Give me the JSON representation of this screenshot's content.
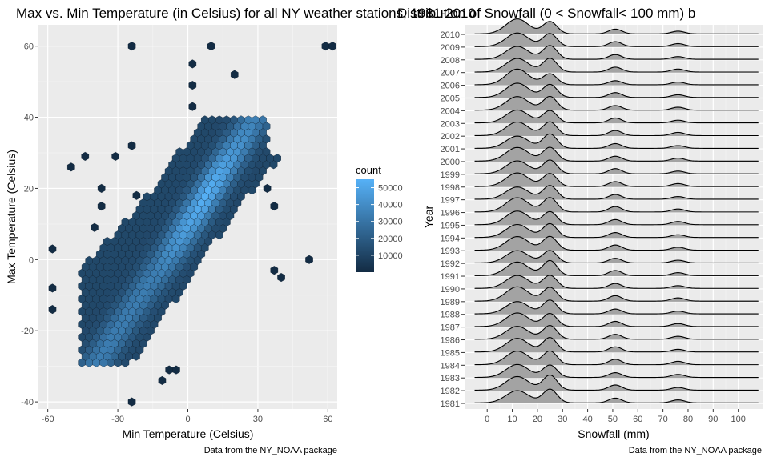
{
  "chart_data": [
    {
      "type": "hexbin",
      "title": "Max vs. Min Temperature (in Celsius) for all NY weather stations, 1981-2010",
      "xlabel": "Min Temperature (Celsius)",
      "ylabel": "Max Temperature (Celsius)",
      "caption": "Data from the NY_NOAA package",
      "xlim": [
        -64,
        64
      ],
      "ylim": [
        -42,
        66
      ],
      "x_ticks": [
        -60,
        -30,
        0,
        30,
        60
      ],
      "y_ticks": [
        -40,
        -20,
        0,
        20,
        40,
        60
      ],
      "grid": true,
      "hex_size_x": 3.1,
      "legend": {
        "title": "count",
        "position": "right",
        "ticks": [
          10000,
          20000,
          30000,
          40000,
          50000
        ],
        "tick_labels": [
          "10000",
          "20000",
          "30000",
          "40000",
          "50000"
        ],
        "range": [
          1,
          55000
        ],
        "color_low": "#132b43",
        "color_high": "#56b1f7"
      },
      "cells": [
        {
          "x": -24,
          "y": 60,
          "count": 1
        },
        {
          "x": 10,
          "y": 60,
          "count": 1
        },
        {
          "x": 59,
          "y": 60,
          "count": 1
        },
        {
          "x": 62,
          "y": 60,
          "count": 1
        },
        {
          "x": 2,
          "y": 55,
          "count": 1
        },
        {
          "x": 20,
          "y": 52,
          "count": 1
        },
        {
          "x": 2,
          "y": 49,
          "count": 1
        },
        {
          "x": 2,
          "y": 43,
          "count": 1
        },
        {
          "x": -58,
          "y": 3,
          "count": 1
        },
        {
          "x": -58,
          "y": -8,
          "count": 1
        },
        {
          "x": -58,
          "y": -14,
          "count": 1
        },
        {
          "x": -50,
          "y": 26,
          "count": 1
        },
        {
          "x": -44,
          "y": 29,
          "count": 1
        },
        {
          "x": -31,
          "y": 29,
          "count": 1
        },
        {
          "x": -37,
          "y": 20,
          "count": 1
        },
        {
          "x": -37,
          "y": 15,
          "count": 1
        },
        {
          "x": -40,
          "y": 9,
          "count": 1
        },
        {
          "x": -24,
          "y": 32,
          "count": 1
        },
        {
          "x": -22,
          "y": 18,
          "count": 1
        },
        {
          "x": 52,
          "y": 0,
          "count": 1
        },
        {
          "x": 37,
          "y": -3,
          "count": 1
        },
        {
          "x": 40,
          "y": -5,
          "count": 1
        },
        {
          "x": -24,
          "y": -40,
          "count": 1
        },
        {
          "x": -11,
          "y": -34,
          "count": 1
        },
        {
          "x": -8,
          "y": -31,
          "count": 1
        },
        {
          "x": -5,
          "y": -31,
          "count": 1
        },
        {
          "x": 37,
          "y": 15,
          "count": 1
        },
        {
          "x": 34,
          "y": 20,
          "count": 1
        }
      ]
    },
    {
      "type": "ridgeline",
      "title": "Distribution of Snowfall (0 < Snowfall< 100 mm) b",
      "xlabel": "Snowfall (mm)",
      "ylabel": "Year",
      "caption": "Data from the NY_NOAA package",
      "xlim": [
        -9,
        110
      ],
      "x_ticks": [
        0,
        10,
        20,
        30,
        40,
        50,
        60,
        70,
        80,
        90,
        100
      ],
      "categories": [
        "1981",
        "1982",
        "1983",
        "1984",
        "1985",
        "1986",
        "1987",
        "1988",
        "1989",
        "1990",
        "1991",
        "1992",
        "1993",
        "1994",
        "1995",
        "1996",
        "1997",
        "1998",
        "1999",
        "2000",
        "2001",
        "2002",
        "2003",
        "2004",
        "2005",
        "2006",
        "2007",
        "2008",
        "2009",
        "2010"
      ],
      "fill_color": "#a3a3a3",
      "line_color": "#000000",
      "peaks": [
        {
          "mu": 12,
          "sigma": 4.5
        },
        {
          "mu": 25,
          "sigma": 2.8
        },
        {
          "mu": 51,
          "sigma": 2.6
        },
        {
          "mu": 76,
          "sigma": 2.6
        }
      ],
      "series": [
        {
          "year": "1981",
          "peak_weights": [
            0.9,
            1.0,
            0.35,
            0.22
          ]
        },
        {
          "year": "1982",
          "peak_weights": [
            1.0,
            1.1,
            0.38,
            0.2
          ]
        },
        {
          "year": "1983",
          "peak_weights": [
            0.95,
            0.9,
            0.35,
            0.22
          ]
        },
        {
          "year": "1984",
          "peak_weights": [
            1.0,
            1.0,
            0.4,
            0.25
          ]
        },
        {
          "year": "1985",
          "peak_weights": [
            1.0,
            1.05,
            0.38,
            0.2
          ]
        },
        {
          "year": "1986",
          "peak_weights": [
            0.95,
            1.0,
            0.36,
            0.22
          ]
        },
        {
          "year": "1987",
          "peak_weights": [
            1.0,
            0.95,
            0.38,
            0.22
          ]
        },
        {
          "year": "1988",
          "peak_weights": [
            0.9,
            1.0,
            0.35,
            0.2
          ]
        },
        {
          "year": "1989",
          "peak_weights": [
            1.05,
            1.0,
            0.4,
            0.24
          ]
        },
        {
          "year": "1990",
          "peak_weights": [
            0.95,
            0.95,
            0.36,
            0.2
          ]
        },
        {
          "year": "1991",
          "peak_weights": [
            1.0,
            1.1,
            0.38,
            0.22
          ]
        },
        {
          "year": "1992",
          "peak_weights": [
            0.9,
            0.9,
            0.34,
            0.2
          ]
        },
        {
          "year": "1993",
          "peak_weights": [
            1.0,
            1.0,
            0.38,
            0.22
          ]
        },
        {
          "year": "1994",
          "peak_weights": [
            0.95,
            1.0,
            0.36,
            0.2
          ]
        },
        {
          "year": "1995",
          "peak_weights": [
            1.0,
            0.95,
            0.38,
            0.24
          ]
        },
        {
          "year": "1996",
          "peak_weights": [
            1.05,
            1.05,
            0.4,
            0.22
          ]
        },
        {
          "year": "1997",
          "peak_weights": [
            0.9,
            1.0,
            0.35,
            0.2
          ]
        },
        {
          "year": "1998",
          "peak_weights": [
            1.0,
            0.95,
            0.36,
            0.22
          ]
        },
        {
          "year": "1999",
          "peak_weights": [
            0.95,
            1.0,
            0.38,
            0.2
          ]
        },
        {
          "year": "2000",
          "peak_weights": [
            1.0,
            1.0,
            0.36,
            0.22
          ]
        },
        {
          "year": "2001",
          "peak_weights": [
            0.9,
            1.05,
            0.35,
            0.2
          ]
        },
        {
          "year": "2002",
          "peak_weights": [
            1.0,
            1.0,
            0.38,
            0.24
          ]
        },
        {
          "year": "2003",
          "peak_weights": [
            0.95,
            0.9,
            0.36,
            0.2
          ]
        },
        {
          "year": "2004",
          "peak_weights": [
            1.0,
            1.0,
            0.34,
            0.22
          ]
        },
        {
          "year": "2005",
          "peak_weights": [
            1.05,
            0.95,
            0.36,
            0.2
          ]
        },
        {
          "year": "2006",
          "peak_weights": [
            1.15,
            0.8,
            0.3,
            0.2
          ]
        },
        {
          "year": "2007",
          "peak_weights": [
            1.0,
            1.0,
            0.36,
            0.22
          ]
        },
        {
          "year": "2008",
          "peak_weights": [
            0.95,
            1.0,
            0.35,
            0.2
          ]
        },
        {
          "year": "2009",
          "peak_weights": [
            1.0,
            0.95,
            0.36,
            0.22
          ]
        },
        {
          "year": "2010",
          "peak_weights": [
            1.1,
            0.9,
            0.35,
            0.2
          ]
        }
      ]
    }
  ]
}
